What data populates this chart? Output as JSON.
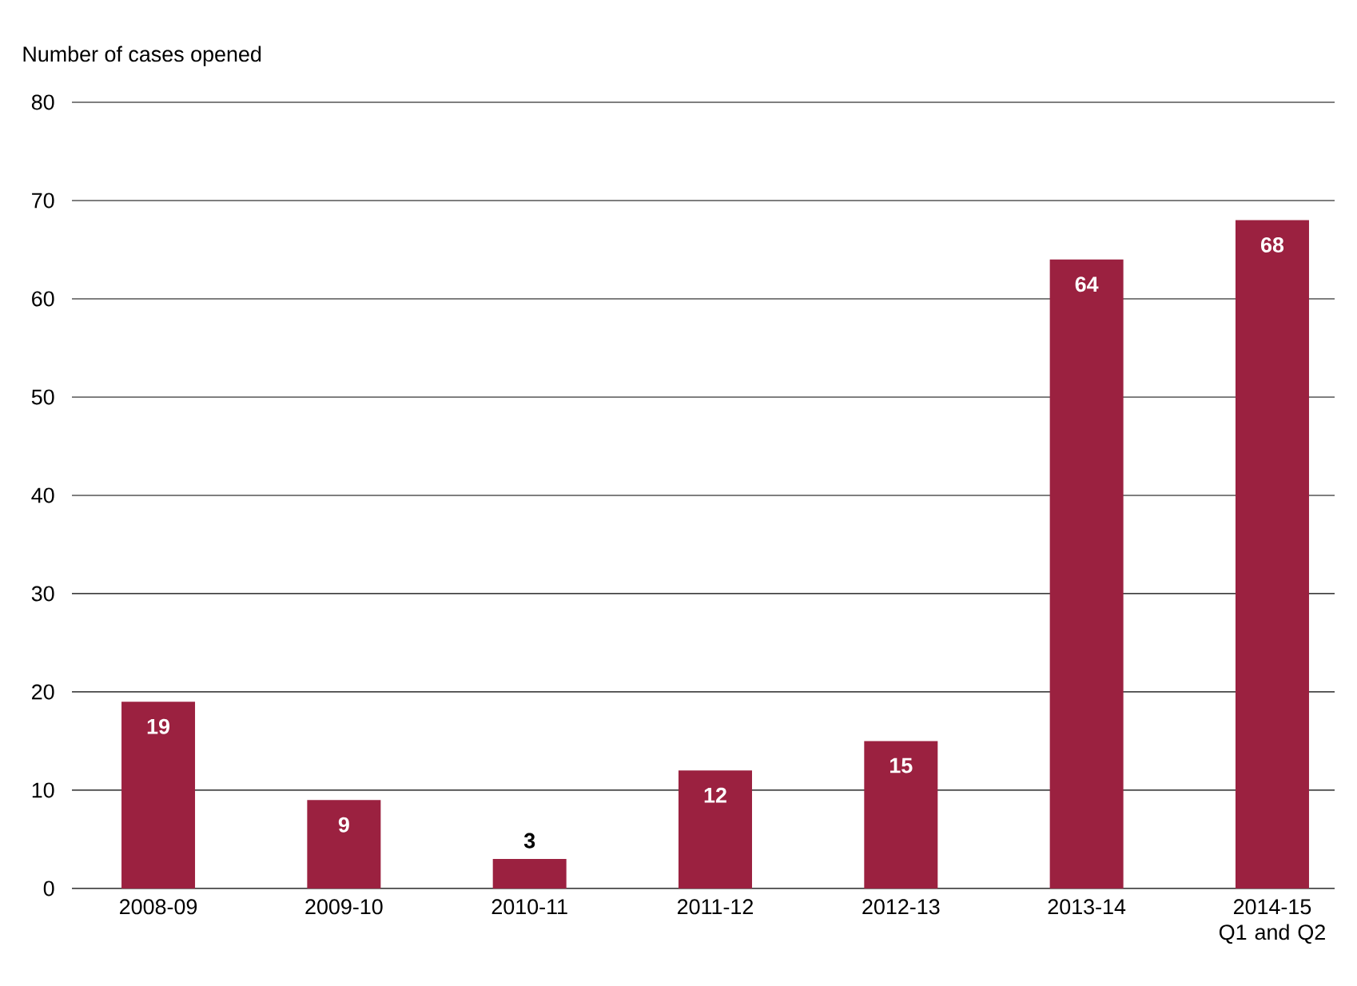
{
  "chart_data": {
    "type": "bar",
    "ylabel": "Number of cases opened",
    "categories": [
      "2008-09",
      "2009-10",
      "2010-11",
      "2011-12",
      "2012-13",
      "2013-14",
      "2014-15 Q1 and Q2"
    ],
    "values": [
      19,
      9,
      3,
      12,
      15,
      64,
      68
    ],
    "color": "#9b2140",
    "ylim": [
      0,
      80
    ],
    "yticks": [
      0,
      10,
      20,
      30,
      40,
      50,
      60,
      70,
      80
    ],
    "grid": "y",
    "data_labels": true
  }
}
